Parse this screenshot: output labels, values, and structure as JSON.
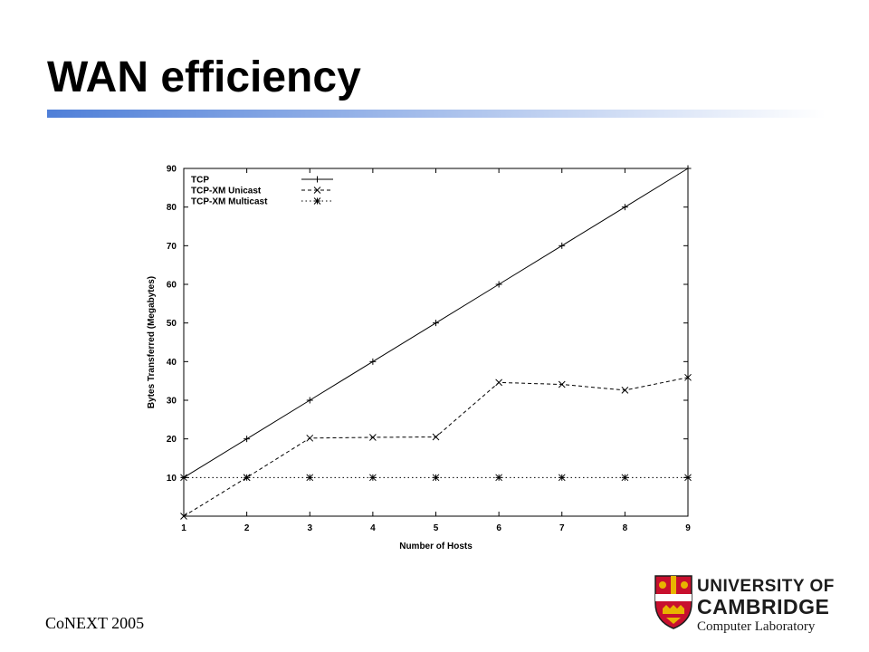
{
  "slide": {
    "title": "WAN efficiency",
    "footer": "CoNEXT 2005"
  },
  "logo": {
    "line1": "UNIVERSITY OF",
    "line2": "CAMBRIDGE",
    "line3": "Computer Laboratory"
  },
  "colors": {
    "title_bar_start": "#4f7fd8",
    "title_bar_end": "#ffffff",
    "crest_red": "#c8102e",
    "crest_gold": "#e8b400"
  },
  "chart_data": {
    "type": "line",
    "title": "",
    "xlabel": "Number of Hosts",
    "ylabel": "Bytes Transferred (Megabytes)",
    "x": [
      1,
      2,
      3,
      4,
      5,
      6,
      7,
      8,
      9
    ],
    "xlim": [
      1,
      9
    ],
    "ylim": [
      0,
      90
    ],
    "xticks": [
      1,
      2,
      3,
      4,
      5,
      6,
      7,
      8,
      9
    ],
    "yticks": [
      10,
      20,
      30,
      40,
      50,
      60,
      70,
      80,
      90
    ],
    "grid": false,
    "legend_position": "top-left",
    "series": [
      {
        "name": "TCP",
        "values": [
          10,
          20,
          30,
          40,
          50,
          60,
          70,
          80,
          90
        ],
        "marker": "plus",
        "dash": "solid"
      },
      {
        "name": "TCP-XM Unicast",
        "values": [
          0,
          10,
          20.2,
          20.4,
          20.5,
          34.6,
          34.1,
          32.6,
          35.9
        ],
        "marker": "x",
        "dash": "dashed"
      },
      {
        "name": "TCP-XM Multicast",
        "values": [
          10,
          10,
          10,
          10,
          10,
          10,
          10,
          10,
          10
        ],
        "marker": "star",
        "dash": "dotted"
      }
    ]
  }
}
